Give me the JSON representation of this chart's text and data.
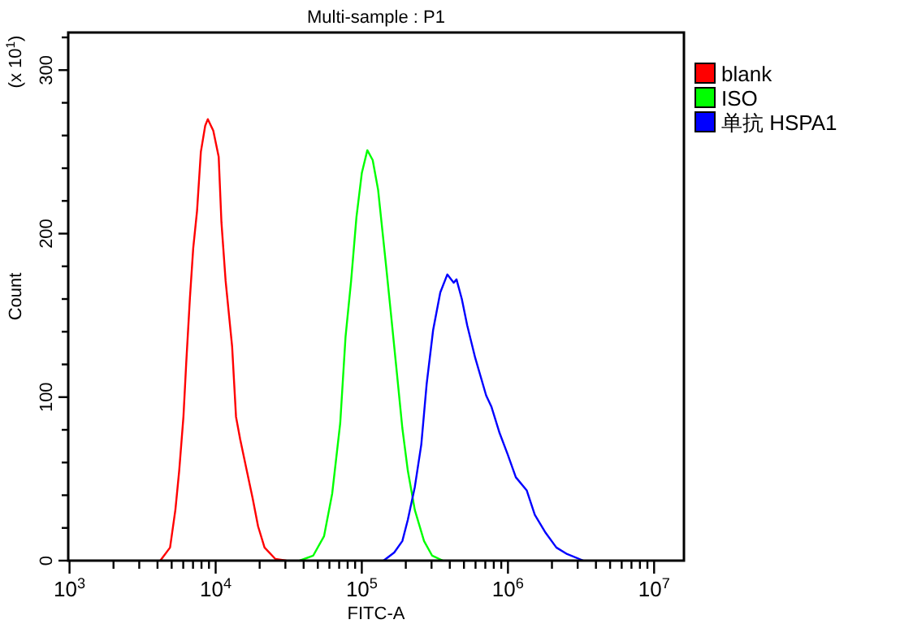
{
  "chart_data": {
    "type": "line",
    "title": "Multi-sample : P1",
    "xlabel": "FITC-A",
    "ylabel": "Count",
    "annotations": [
      "(x 10$^{1}$)"
    ],
    "log": "x",
    "grid": false,
    "legend": "right",
    "xlim": [
      980,
      16000000
    ],
    "xticks": [
      {
        "value": 1000,
        "label": "10$^{3}$"
      },
      {
        "value": 2000,
        "label": null
      },
      {
        "value": 3000,
        "label": null
      },
      {
        "value": 4000,
        "label": null
      },
      {
        "value": 5000,
        "label": null
      },
      {
        "value": 6000,
        "label": null
      },
      {
        "value": 7000,
        "label": null
      },
      {
        "value": 8000,
        "label": null
      },
      {
        "value": 9000,
        "label": null
      },
      {
        "value": 10000,
        "label": "10$^{4}$"
      },
      {
        "value": 20000,
        "label": null
      },
      {
        "value": 30000,
        "label": null
      },
      {
        "value": 40000,
        "label": null
      },
      {
        "value": 50000,
        "label": null
      },
      {
        "value": 60000,
        "label": null
      },
      {
        "value": 70000,
        "label": null
      },
      {
        "value": 80000,
        "label": null
      },
      {
        "value": 90000,
        "label": null
      },
      {
        "value": 100000,
        "label": "10$^{5}$"
      },
      {
        "value": 200000,
        "label": null
      },
      {
        "value": 300000,
        "label": null
      },
      {
        "value": 400000,
        "label": null
      },
      {
        "value": 500000,
        "label": null
      },
      {
        "value": 600000,
        "label": null
      },
      {
        "value": 700000,
        "label": null
      },
      {
        "value": 800000,
        "label": null
      },
      {
        "value": 900000,
        "label": null
      },
      {
        "value": 1000000,
        "label": "10$^{6}$"
      },
      {
        "value": 2000000,
        "label": null
      },
      {
        "value": 3000000,
        "label": null
      },
      {
        "value": 4000000,
        "label": null
      },
      {
        "value": 5000000,
        "label": null
      },
      {
        "value": 6000000,
        "label": null
      },
      {
        "value": 7000000,
        "label": null
      },
      {
        "value": 8000000,
        "label": null
      },
      {
        "value": 9000000,
        "label": null
      },
      {
        "value": 10000000,
        "label": "10$^{7}$"
      }
    ],
    "ylim": [
      0,
      323
    ],
    "yticks": [
      0,
      {
        "value": 20,
        "label": null
      },
      {
        "value": 40,
        "label": null
      },
      {
        "value": 60,
        "label": null
      },
      {
        "value": 80,
        "label": null
      },
      100,
      {
        "value": 120,
        "label": null
      },
      {
        "value": 140,
        "label": null
      },
      {
        "value": 160,
        "label": null
      },
      {
        "value": 180,
        "label": null
      },
      200,
      {
        "value": 220,
        "label": null
      },
      {
        "value": 240,
        "label": null
      },
      {
        "value": 260,
        "label": null
      },
      {
        "value": 280,
        "label": null
      },
      300,
      {
        "value": 320,
        "label": null
      }
    ],
    "series": [
      {
        "name": "blank",
        "color": "#ff0000",
        "x": [
          4180,
          4875,
          5300,
          5630,
          6020,
          6290,
          6670,
          7020,
          7460,
          7920,
          8480,
          8840,
          9630,
          10490,
          10950,
          11700,
          12960,
          13780,
          14730,
          16070,
          17920,
          19510,
          21600,
          25630,
          30420
        ],
        "values": [
          0,
          8,
          31,
          55,
          88,
          121,
          161,
          191,
          214,
          250,
          266,
          270,
          263,
          247,
          207,
          171,
          131,
          88,
          74,
          58,
          38,
          21,
          8,
          1,
          0
        ]
      },
      {
        "name": "ISO",
        "color": "#00ff00",
        "x": [
          37580,
          46450,
          55180,
          62710,
          71160,
          77420,
          84480,
          91900,
          100000,
          109100,
          118700,
          129200,
          146700,
          159900,
          174100,
          189400,
          206500,
          230500,
          266600,
          303100,
          358600
        ],
        "values": [
          0,
          3,
          15,
          41,
          84,
          137,
          171,
          210,
          237,
          251,
          245,
          227,
          180,
          147,
          114,
          81,
          55,
          31,
          12,
          3,
          0
        ]
      },
      {
        "name": "单抗 HSPA1",
        "color": "#0000ff",
        "x": [
          140900,
          166700,
          189400,
          206500,
          230500,
          255300,
          277800,
          307600,
          344200,
          384600,
          425600,
          444600,
          483500,
          525900,
          597000,
          709300,
          771500,
          876800,
          995400,
          1132000,
          1343000,
          1527000,
          1811000,
          2144000,
          2541000,
          3281000
        ],
        "values": [
          0,
          5,
          12,
          25,
          45,
          71,
          108,
          141,
          164,
          175,
          170,
          172,
          160,
          144,
          124,
          101,
          94,
          78,
          65,
          51,
          43,
          28,
          17,
          8,
          4,
          0
        ]
      }
    ]
  }
}
